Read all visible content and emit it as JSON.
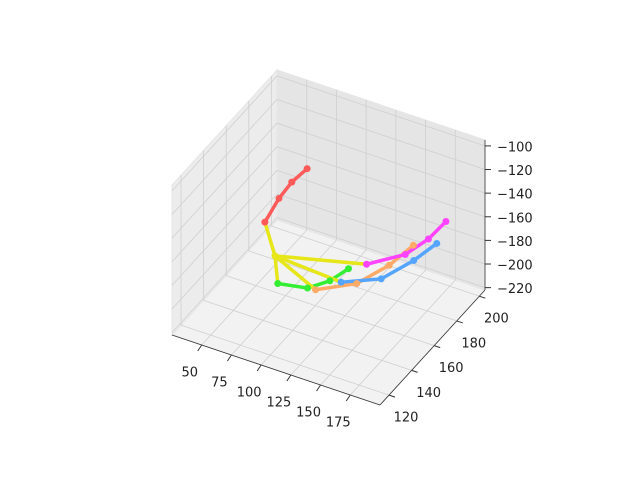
{
  "chart_data": {
    "type": "line3d",
    "xlim": [
      25,
      200
    ],
    "ylim": [
      112,
      205
    ],
    "zlim": [
      -222,
      -95
    ],
    "xticks": [
      50,
      75,
      100,
      125,
      150,
      175
    ],
    "yticks": [
      120,
      140,
      160,
      180,
      200
    ],
    "zticks": [
      {
        "value": -220,
        "label": "−220"
      },
      {
        "value": -200,
        "label": "−200"
      },
      {
        "value": -180,
        "label": "−180"
      },
      {
        "value": -160,
        "label": "−160"
      },
      {
        "value": -140,
        "label": "−140"
      },
      {
        "value": -120,
        "label": "−120"
      },
      {
        "value": -100,
        "label": "−100"
      }
    ],
    "grid": true,
    "palm_color": "#e6e619",
    "wrist": {
      "x": 67,
      "y": 159,
      "z": -190,
      "color": "#e6e619"
    },
    "series": [
      {
        "color": "#ff5a5a",
        "x": [
          49,
          58,
          65,
          76
        ],
        "y": [
          169,
          172,
          176,
          178
        ],
        "z": [
          -178,
          -158,
          -146,
          -133
        ]
      },
      {
        "color": "#33ee33",
        "x": [
          76,
          102,
          117,
          126
        ],
        "y": [
          152,
          151,
          155,
          162
        ],
        "z": [
          -203,
          -197,
          -190,
          -184
        ]
      },
      {
        "color": "#ffaa66",
        "x": [
          104,
          131,
          146,
          154
        ],
        "y": [
          156,
          164,
          177,
          190
        ],
        "z": [
          -203,
          -197,
          -190,
          -184
        ]
      },
      {
        "color": "#55a5ff",
        "x": [
          116,
          144,
          159,
          168
        ],
        "y": [
          166,
          172,
          185,
          196
        ],
        "z": [
          -203,
          -197,
          -190,
          -184
        ]
      },
      {
        "color": "#ff44ff",
        "x": [
          126,
          150,
          160,
          170
        ],
        "y": [
          178,
          187,
          197,
          202
        ],
        "z": [
          -197,
          -190,
          -184,
          -171
        ]
      }
    ]
  }
}
